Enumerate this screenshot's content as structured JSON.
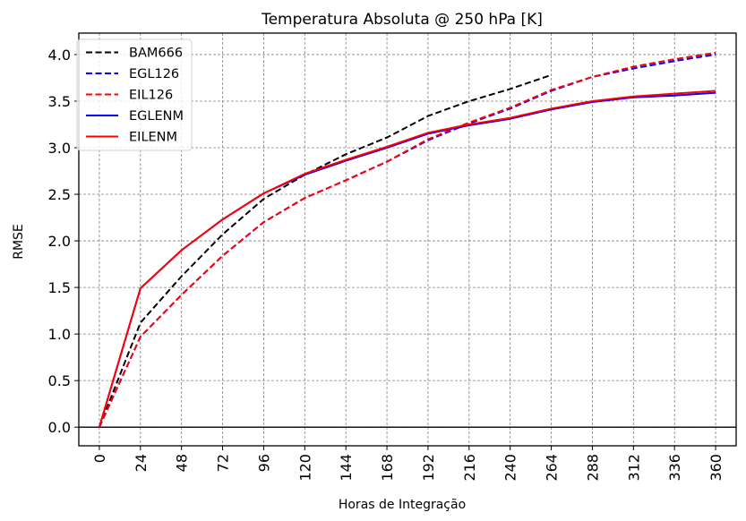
{
  "chart_data": {
    "type": "line",
    "title": "Temperatura Absoluta @ 250 hPa [K]",
    "xlabel": "Horas de Integração",
    "ylabel": "RMSE",
    "xlim": [
      -12,
      372
    ],
    "ylim": [
      -0.2,
      4.23
    ],
    "grid": true,
    "legend_position": "top-left",
    "x_ticks": [
      0,
      24,
      48,
      72,
      96,
      120,
      144,
      168,
      192,
      216,
      240,
      264,
      288,
      312,
      336,
      360
    ],
    "y_ticks": [
      0.0,
      0.5,
      1.0,
      1.5,
      2.0,
      2.5,
      3.0,
      3.5,
      4.0
    ],
    "y_tick_labels": [
      "0.0",
      "0.5",
      "1.0",
      "1.5",
      "2.0",
      "2.5",
      "3.0",
      "3.5",
      "4.0"
    ],
    "zero_line": 0,
    "series": [
      {
        "name": "BAM666",
        "color": "#000000",
        "style": "dashed",
        "x": [
          0,
          24,
          48,
          72,
          96,
          120,
          144,
          168,
          192,
          216,
          240,
          264
        ],
        "values": [
          0.0,
          1.12,
          1.62,
          2.07,
          2.45,
          2.71,
          2.93,
          3.11,
          3.34,
          3.5,
          3.63,
          3.78
        ]
      },
      {
        "name": "EGL126",
        "color": "#0000ff",
        "style": "dashed",
        "x": [
          0,
          24,
          48,
          72,
          96,
          120,
          144,
          168,
          192,
          216,
          240,
          264,
          288,
          312,
          336,
          360
        ],
        "values": [
          0.0,
          0.97,
          1.42,
          1.84,
          2.2,
          2.46,
          2.65,
          2.85,
          3.08,
          3.26,
          3.42,
          3.61,
          3.76,
          3.85,
          3.93,
          4.0
        ]
      },
      {
        "name": "EIL126",
        "color": "#ff0000",
        "style": "dashed",
        "x": [
          0,
          24,
          48,
          72,
          96,
          120,
          144,
          168,
          192,
          216,
          240,
          264,
          288,
          312,
          336,
          360
        ],
        "values": [
          0.0,
          0.97,
          1.42,
          1.84,
          2.2,
          2.46,
          2.65,
          2.85,
          3.09,
          3.27,
          3.43,
          3.62,
          3.76,
          3.87,
          3.95,
          4.02
        ]
      },
      {
        "name": "EGLENM",
        "color": "#0000ff",
        "style": "solid",
        "x": [
          0,
          24,
          48,
          72,
          96,
          120,
          144,
          168,
          192,
          216,
          240,
          264,
          288,
          312,
          336,
          360
        ],
        "values": [
          0.0,
          1.49,
          1.9,
          2.23,
          2.51,
          2.71,
          2.86,
          3.0,
          3.15,
          3.24,
          3.31,
          3.41,
          3.49,
          3.54,
          3.56,
          3.59
        ]
      },
      {
        "name": "EILENM",
        "color": "#ff0000",
        "style": "solid",
        "x": [
          0,
          24,
          48,
          72,
          96,
          120,
          144,
          168,
          192,
          216,
          240,
          264,
          288,
          312,
          336,
          360
        ],
        "values": [
          0.0,
          1.49,
          1.9,
          2.23,
          2.51,
          2.72,
          2.87,
          3.01,
          3.16,
          3.25,
          3.32,
          3.42,
          3.5,
          3.55,
          3.58,
          3.61
        ]
      }
    ]
  }
}
